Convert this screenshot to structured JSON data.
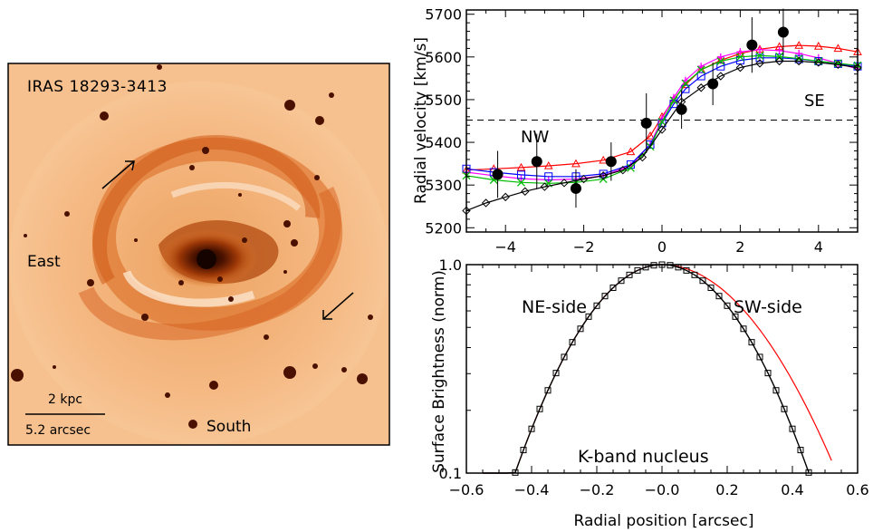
{
  "image_panel": {
    "title": "IRAS 18293-3413",
    "label_east": "East",
    "label_south": "South",
    "scale_kpc": "2 kpc",
    "scale_arcsec": "5.2 arcsec"
  },
  "chart_data": [
    {
      "type": "line",
      "ylabel": "Radial velocity [km/s]",
      "xlabel": "",
      "xlim": [
        -5,
        5
      ],
      "ylim": [
        5190,
        5710
      ],
      "xticks": [
        -4,
        -2,
        0,
        2,
        4
      ],
      "yticks": [
        5200,
        5300,
        5400,
        5500,
        5600,
        5700
      ],
      "reference_line": {
        "y": 5452,
        "style": "dashed"
      },
      "annotations": [
        "NW",
        "SE"
      ],
      "series": [
        {
          "color": "#ff0000",
          "marker": "triangle",
          "x": [
            -5.0,
            -4.3,
            -3.6,
            -2.9,
            -2.2,
            -1.5,
            -0.8,
            -0.3,
            0.0,
            0.3,
            0.6,
            1.0,
            1.5,
            2.0,
            2.5,
            3.0,
            3.5,
            4.0,
            4.5,
            5.0
          ],
          "y": [
            5335,
            5338,
            5341,
            5345,
            5350,
            5358,
            5378,
            5415,
            5460,
            5500,
            5535,
            5570,
            5592,
            5608,
            5618,
            5624,
            5627,
            5625,
            5620,
            5612
          ]
        },
        {
          "color": "#ff00ff",
          "marker": "plus",
          "x": [
            -5.0,
            -4.3,
            -3.6,
            -2.9,
            -2.2,
            -1.5,
            -0.8,
            -0.3,
            0.0,
            0.3,
            0.6,
            1.0,
            1.5,
            2.0,
            2.5,
            3.0,
            3.5,
            4.0,
            4.5,
            5.0
          ],
          "y": [
            5330,
            5322,
            5315,
            5312,
            5314,
            5322,
            5345,
            5395,
            5455,
            5505,
            5545,
            5578,
            5600,
            5612,
            5617,
            5615,
            5608,
            5598,
            5585,
            5572
          ]
        },
        {
          "color": "#0000ff",
          "marker": "square",
          "x": [
            -5.0,
            -4.3,
            -3.6,
            -2.9,
            -2.2,
            -1.5,
            -0.8,
            -0.3,
            0.0,
            0.3,
            0.6,
            1.0,
            1.5,
            2.0,
            2.5,
            3.0,
            3.5,
            4.0,
            4.5,
            5.0
          ],
          "y": [
            5338,
            5330,
            5324,
            5320,
            5320,
            5326,
            5348,
            5395,
            5445,
            5490,
            5525,
            5555,
            5578,
            5592,
            5598,
            5598,
            5595,
            5590,
            5584,
            5578
          ]
        },
        {
          "color": "#00bb00",
          "marker": "cross",
          "x": [
            -5.0,
            -4.3,
            -3.6,
            -2.9,
            -2.2,
            -1.5,
            -0.8,
            -0.3,
            0.0,
            0.3,
            0.6,
            1.0,
            1.5,
            2.0,
            2.5,
            3.0,
            3.5,
            4.0,
            4.5,
            5.0
          ],
          "y": [
            5322,
            5312,
            5306,
            5304,
            5306,
            5314,
            5340,
            5390,
            5448,
            5498,
            5538,
            5570,
            5590,
            5600,
            5603,
            5601,
            5596,
            5590,
            5585,
            5580
          ]
        },
        {
          "color": "#000000",
          "marker": "diamond",
          "x": [
            -5.0,
            -4.5,
            -4.0,
            -3.5,
            -3.0,
            -2.5,
            -2.0,
            -1.5,
            -1.0,
            -0.5,
            0.0,
            0.5,
            1.0,
            1.5,
            2.0,
            2.5,
            3.0,
            3.5,
            4.0,
            4.5,
            5.0
          ],
          "y": [
            5240,
            5258,
            5272,
            5285,
            5296,
            5305,
            5314,
            5322,
            5335,
            5365,
            5430,
            5495,
            5528,
            5555,
            5575,
            5585,
            5590,
            5590,
            5587,
            5582,
            5575
          ]
        }
      ],
      "points": [
        {
          "x": -4.2,
          "y": 5325,
          "err": 55
        },
        {
          "x": -3.2,
          "y": 5355,
          "err": 65
        },
        {
          "x": -2.2,
          "y": 5292,
          "err": 45
        },
        {
          "x": -1.3,
          "y": 5355,
          "err": 45
        },
        {
          "x": -0.4,
          "y": 5445,
          "err": 70
        },
        {
          "x": 0.5,
          "y": 5477,
          "err": 45
        },
        {
          "x": 1.3,
          "y": 5537,
          "err": 50
        },
        {
          "x": 2.3,
          "y": 5628,
          "err": 65
        },
        {
          "x": 3.1,
          "y": 5658,
          "err": 55
        }
      ]
    },
    {
      "type": "line",
      "xlabel": "Radial position [arcsec]",
      "ylabel": "Surface Brightness (norm)",
      "xlim": [
        -0.6,
        0.6
      ],
      "ylim": [
        0.1,
        1.0
      ],
      "log_y": true,
      "xticks": [
        "−0.6",
        "−0.4",
        "−0.2",
        "−0.0",
        "0.2",
        "0.4",
        "0.6"
      ],
      "yticks": [
        "0.1",
        "1.0"
      ],
      "annotations": [
        "NE-side",
        "SW-side",
        "K-band nucleus"
      ],
      "series": [
        {
          "color": "#000000",
          "marker": "square",
          "x_step": 0.025,
          "center": 0.0,
          "sigma": 0.21,
          "x_range": [
            -0.55,
            0.45
          ]
        },
        {
          "color": "#ff0000",
          "marker": "none",
          "x_step": 0.01,
          "center": 0.0,
          "sigma_left": 0.21,
          "sigma_right": 0.25,
          "x_range": [
            -0.55,
            0.52
          ]
        }
      ]
    }
  ]
}
